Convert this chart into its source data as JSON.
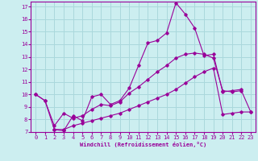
{
  "xlabel": "Windchill (Refroidissement éolien,°C)",
  "bg_color": "#cceef0",
  "grid_color": "#aad8dc",
  "line_color": "#990099",
  "xlim": [
    -0.5,
    23.5
  ],
  "ylim": [
    7,
    17.4
  ],
  "yticks": [
    7,
    8,
    9,
    10,
    11,
    12,
    13,
    14,
    15,
    16,
    17
  ],
  "xticks": [
    0,
    1,
    2,
    3,
    4,
    5,
    6,
    7,
    8,
    9,
    10,
    11,
    12,
    13,
    14,
    15,
    16,
    17,
    18,
    19,
    20,
    21,
    22,
    23
  ],
  "series1_x": [
    0,
    1,
    2,
    3,
    4,
    5,
    6,
    7,
    8,
    9,
    10,
    11,
    12,
    13,
    14,
    15,
    16,
    17,
    18,
    19,
    20,
    21,
    22
  ],
  "series1_y": [
    10.0,
    9.5,
    7.2,
    7.1,
    8.3,
    7.9,
    9.8,
    10.0,
    9.2,
    9.5,
    10.5,
    12.3,
    14.1,
    14.3,
    14.9,
    17.3,
    16.4,
    15.3,
    13.1,
    13.2,
    10.2,
    10.3,
    10.4
  ],
  "series2_x": [
    0,
    1,
    2,
    3,
    4,
    5,
    6,
    7,
    8,
    9,
    10,
    11,
    12,
    13,
    14,
    15,
    16,
    17,
    18,
    19,
    20,
    21,
    22,
    23
  ],
  "series2_y": [
    10.0,
    9.5,
    7.5,
    8.5,
    8.1,
    8.3,
    8.8,
    9.2,
    9.1,
    9.4,
    10.1,
    10.6,
    11.2,
    11.8,
    12.3,
    12.9,
    13.2,
    13.3,
    13.2,
    12.9,
    10.3,
    10.2,
    10.3,
    8.6
  ],
  "series3_x": [
    2,
    3,
    4,
    5,
    6,
    7,
    8,
    9,
    10,
    11,
    12,
    13,
    14,
    15,
    16,
    17,
    18,
    19,
    20,
    21,
    22,
    23
  ],
  "series3_y": [
    7.2,
    7.2,
    7.5,
    7.7,
    7.9,
    8.1,
    8.3,
    8.5,
    8.8,
    9.1,
    9.4,
    9.7,
    10.0,
    10.4,
    10.9,
    11.4,
    11.8,
    12.1,
    8.4,
    8.5,
    8.6,
    8.6
  ]
}
